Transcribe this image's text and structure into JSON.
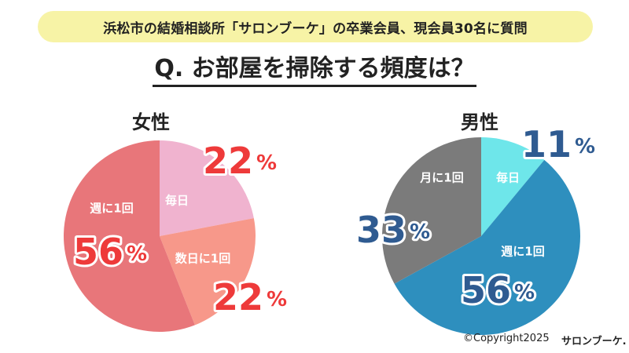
{
  "header": {
    "banner": "浜松市の結婚相談所「サロンブーケ」の卒業会員、現会員30名に質問",
    "question": "Q. お部屋を掃除する頻度は？"
  },
  "chart_data": [
    {
      "type": "pie",
      "title": "女性",
      "unit": "%",
      "slices": [
        {
          "label": "毎日",
          "value": 22,
          "color": "#f0b3cf"
        },
        {
          "label": "数日に1回",
          "value": 22,
          "color": "#f7988a"
        },
        {
          "label": "週に1回",
          "value": 56,
          "color": "#e8767a"
        }
      ],
      "value_color": "#ee3a3a"
    },
    {
      "type": "pie",
      "title": "男性",
      "unit": "%",
      "slices": [
        {
          "label": "毎日",
          "value": 11,
          "color": "#6ee6ea"
        },
        {
          "label": "週に1回",
          "value": 56,
          "color": "#2e8fbe"
        },
        {
          "label": "月に1回",
          "value": 33,
          "color": "#7b7b7b"
        }
      ],
      "value_color": "#2f5b91"
    }
  ],
  "footer": {
    "copyright": "©Copyright2025",
    "brand": "サロンブーケ."
  }
}
